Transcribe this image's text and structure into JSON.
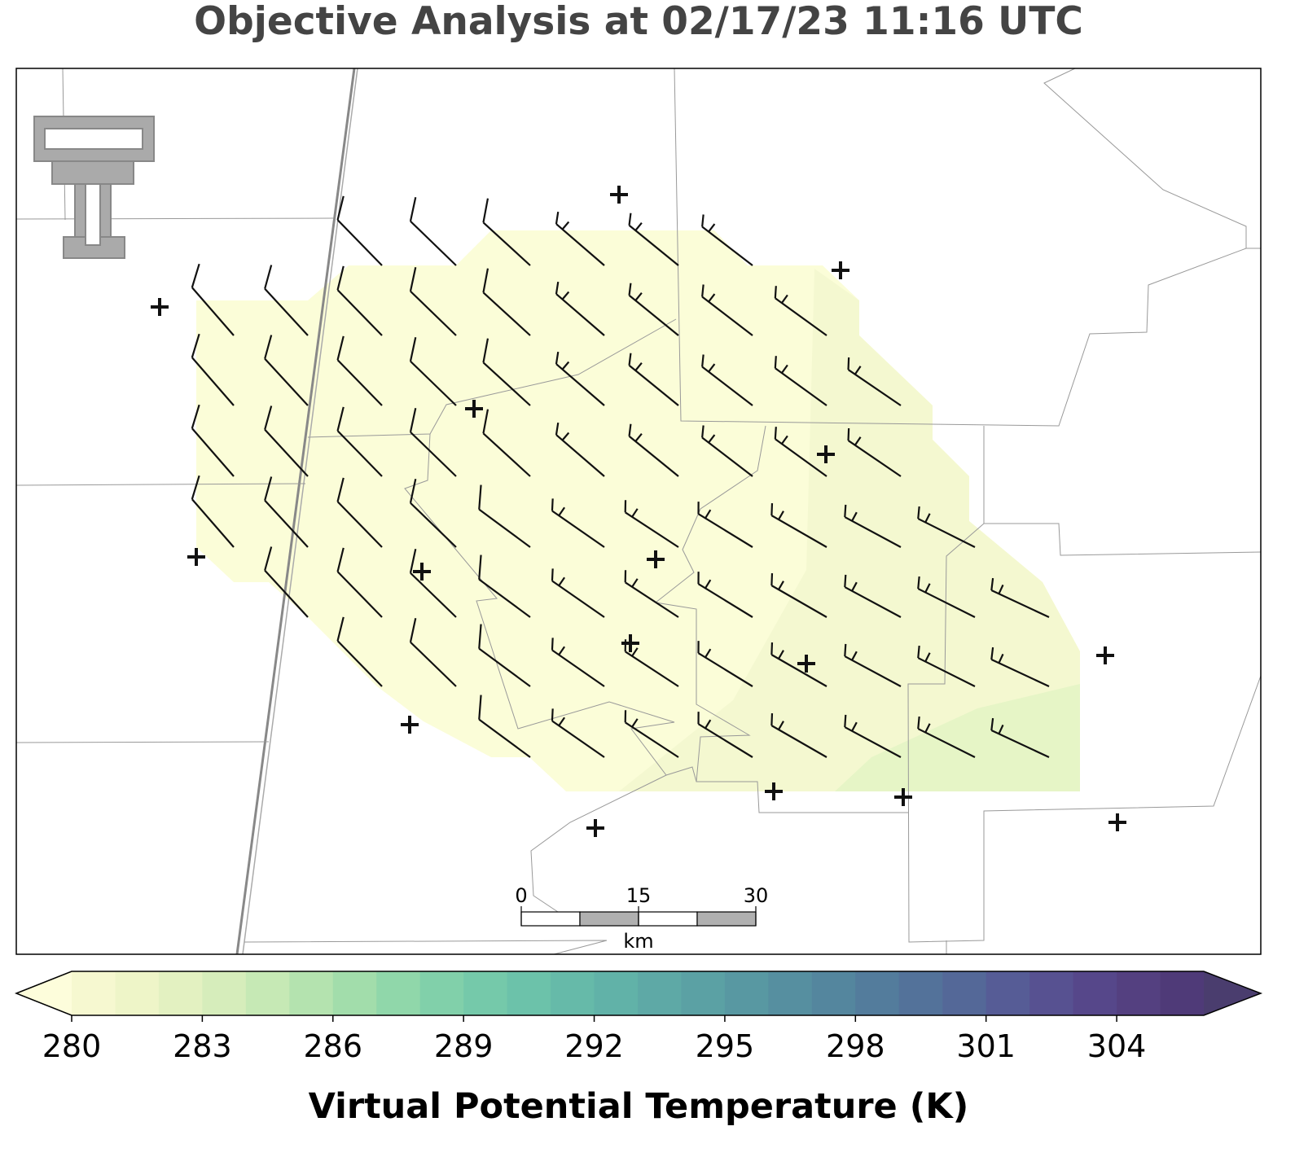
{
  "title": "Objective Analysis at 02/17/23 11:16 UTC",
  "colorbar": {
    "label": "Virtual Potential Temperature (K)",
    "min": 280,
    "max": 306,
    "ticks": [
      280,
      283,
      286,
      289,
      292,
      295,
      298,
      301,
      304
    ],
    "under_color": "#fdfddb",
    "over_color": "#4a3d6e",
    "colors": [
      "#f6f8d0",
      "#eef5c8",
      "#e3f1c1",
      "#d6edbb",
      "#c6e9b5",
      "#b4e3af",
      "#a2ddab",
      "#90d7aa",
      "#81d0aa",
      "#75c9aa",
      "#6cc2aa",
      "#66baa9",
      "#61b2a8",
      "#5ea9a6",
      "#5ba1a4",
      "#5898a2",
      "#568fa0",
      "#54869e",
      "#537c9c",
      "#53729a",
      "#546898",
      "#565c96",
      "#575191",
      "#56478a",
      "#544080",
      "#4f3a78"
    ]
  },
  "scale_bar": {
    "ticks": [
      0,
      15,
      30
    ],
    "unit": "km"
  }
}
